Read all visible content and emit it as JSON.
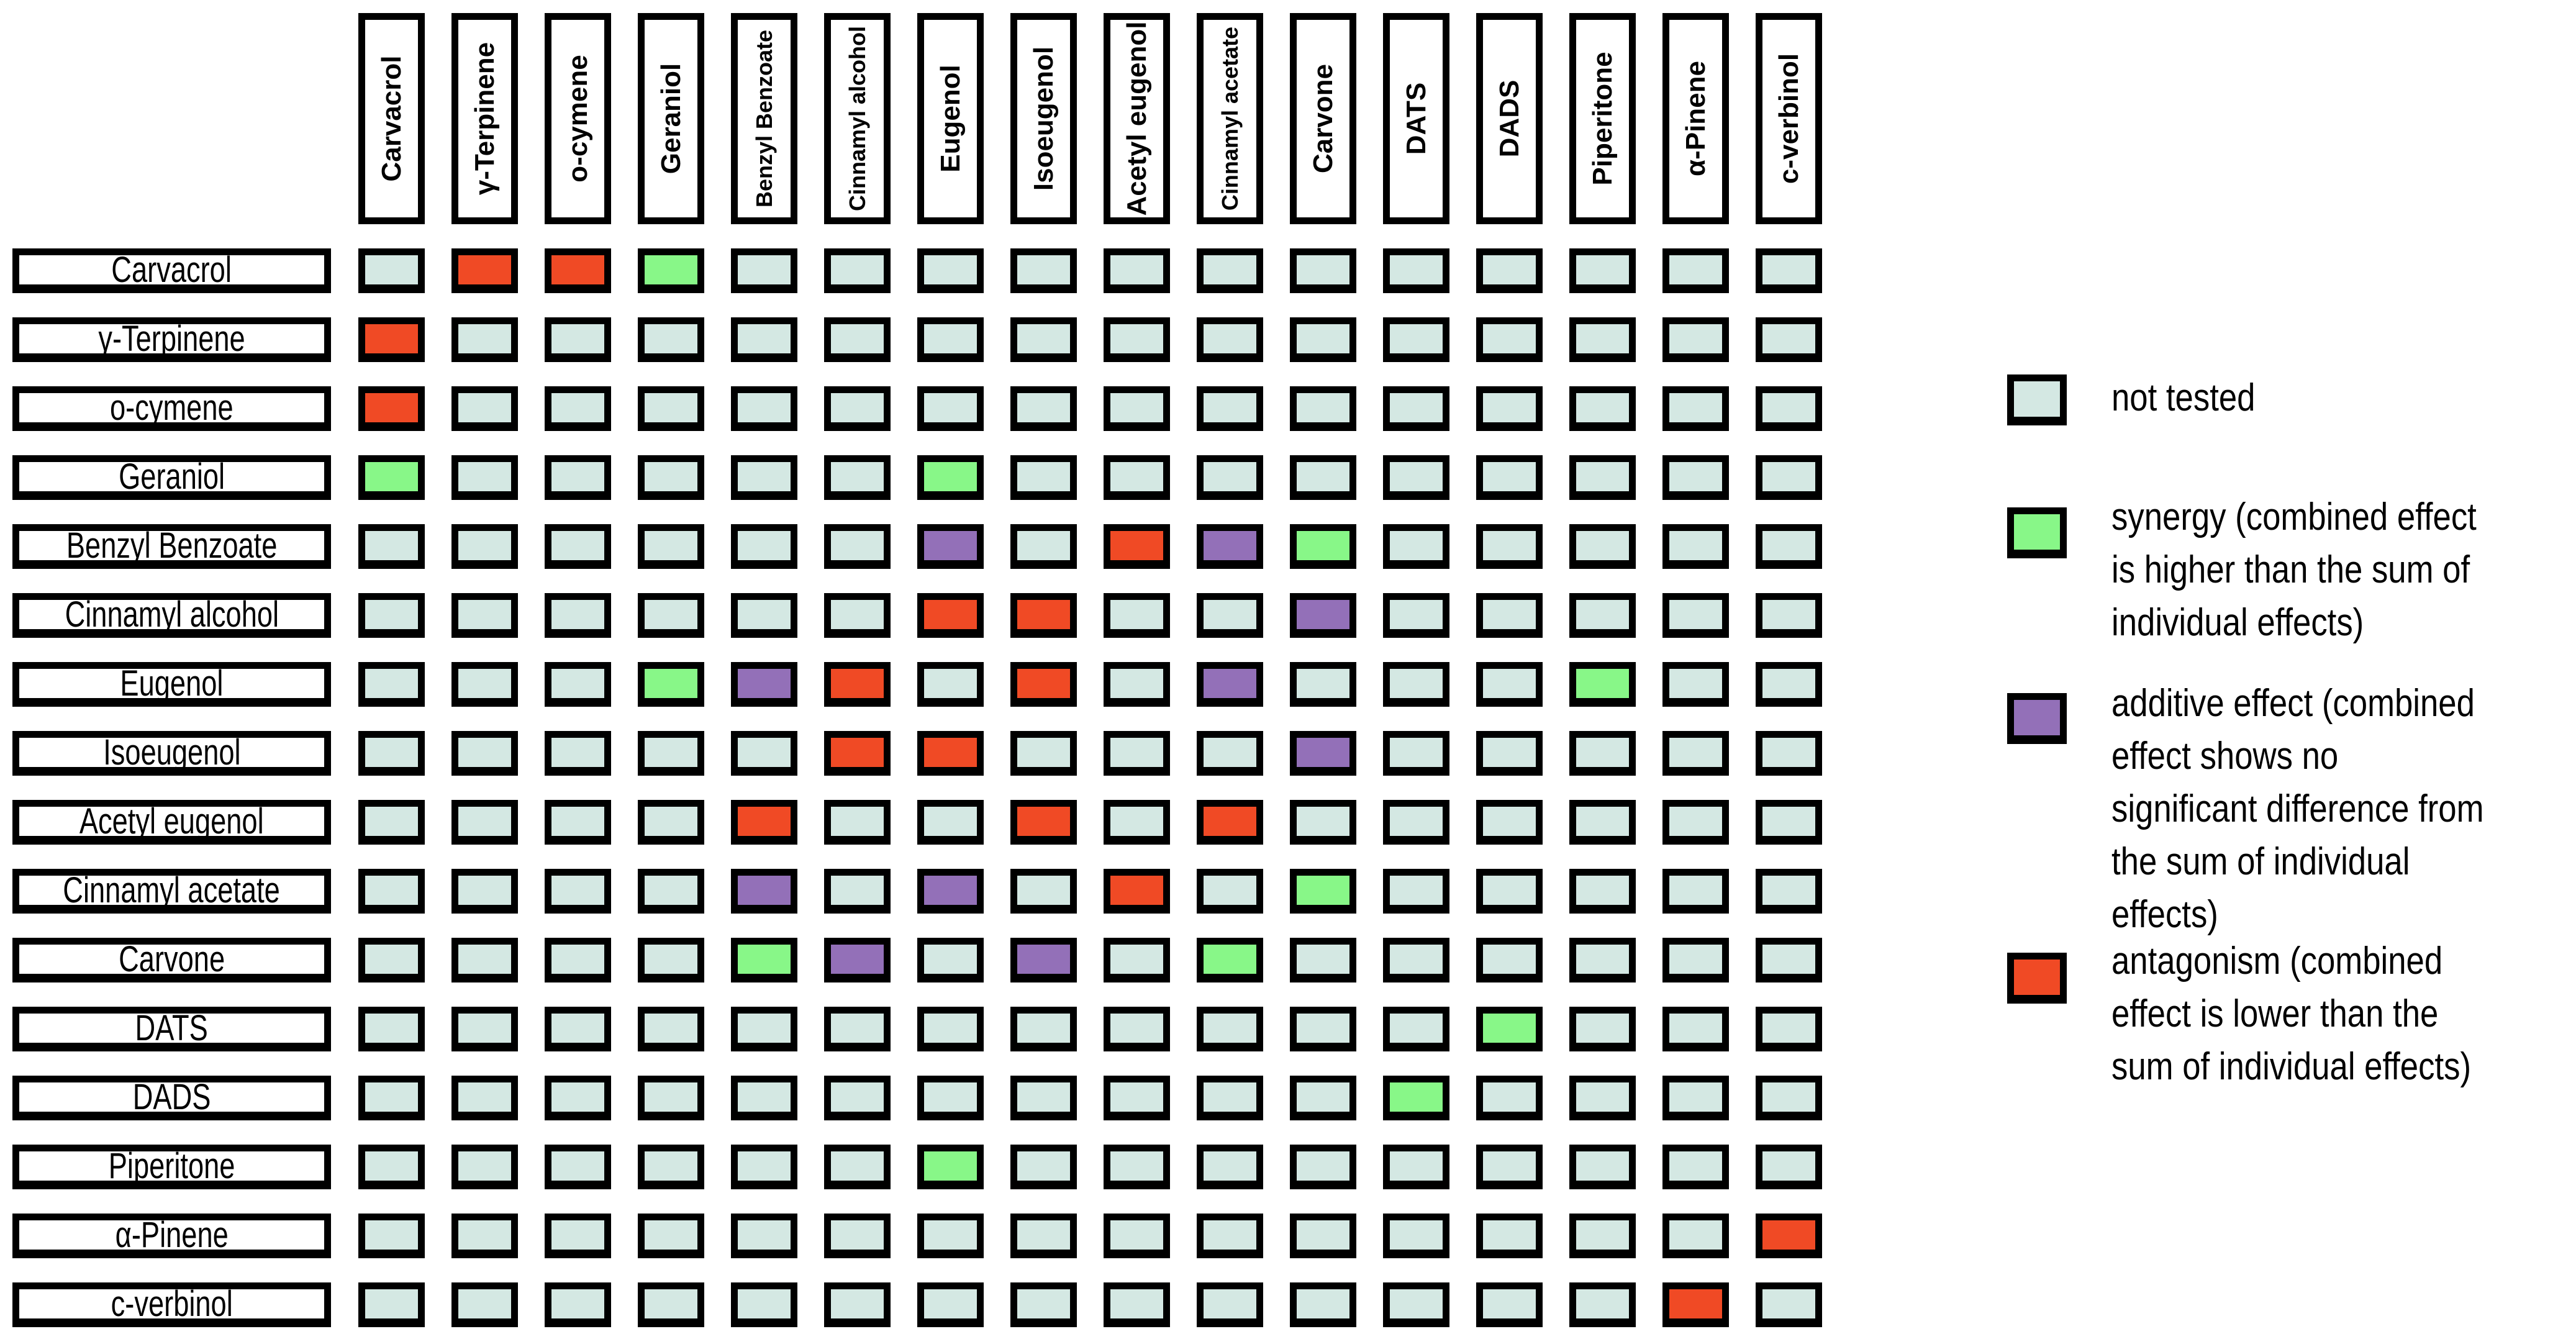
{
  "chart_data": {
    "type": "heatmap",
    "columns": [
      "Carvacrol",
      "γ-Terpinene",
      "o-cymene",
      "Geraniol",
      "Benzyl Benzoate",
      "Cinnamyl alcohol",
      "Eugenol",
      "Isoeugenol",
      "Acetyl eugenol",
      "Cinnamyl acetate",
      "Carvone",
      "DATS",
      "DADS",
      "Piperitone",
      "α-Pinene",
      "c-verbinol"
    ],
    "rows": [
      "Carvacrol",
      "γ-Terpinene",
      "o-cymene",
      "Geraniol",
      "Benzyl Benzoate",
      "Cinnamyl alcohol",
      "Eugenol",
      "Isoeugenol",
      "Acetyl eugenol",
      "Cinnamyl acetate",
      "Carvone",
      "DATS",
      "DADS",
      "Piperitone",
      "α-Pinene",
      "c-verbinol"
    ],
    "categories": {
      "N": {
        "label": "not tested",
        "color": "#d4e8e3"
      },
      "S": {
        "label": "synergy (combined effect is higher than the sum of individual effects)",
        "color": "#88f788"
      },
      "A": {
        "label": "additive effect (combined effect shows no significant difference from the sum of individual effects)",
        "color": "#9370b8"
      },
      "X": {
        "label": "antagonism (combined effect is lower than the sum of individual effects)",
        "color": "#f04a25"
      }
    },
    "matrix": [
      "NXXSNNNNNNNNNNNN",
      "XNNNNNNNNNNNNNNN",
      "XNNNNNNNNNNNNNNN",
      "SNNNNNSNNNNNNNNN",
      "NNNNNNANXASNNNNN",
      "NNNNNNXXNNANNNNN",
      "NNNSAXNXNANNNSNN",
      "NNNNNXXNNNANNNNN",
      "NNNNXNNXNXNNNNNN",
      "NNNNANANXNSNNNNN",
      "NNNNSANANSNNNNNN",
      "NNNNNNNNNNNNSNNN",
      "NNNNNNNNNNNSNNNN",
      "NNNNNNSNNNNNNNNN",
      "NNNNNNNNNNNNNNNX",
      "NNNNNNNNNNNNNNXN"
    ],
    "legend_placement": "right",
    "legend": [
      {
        "key": "N",
        "label": "not tested"
      },
      {
        "key": "S",
        "label": "synergy (combined effect is higher than the sum of individual effects)"
      },
      {
        "key": "A",
        "label": "additive effect (combined effect shows no significant difference from the sum of individual effects)"
      },
      {
        "key": "X",
        "label": "antagonism (combined effect is lower than the sum of individual effects)"
      }
    ]
  }
}
